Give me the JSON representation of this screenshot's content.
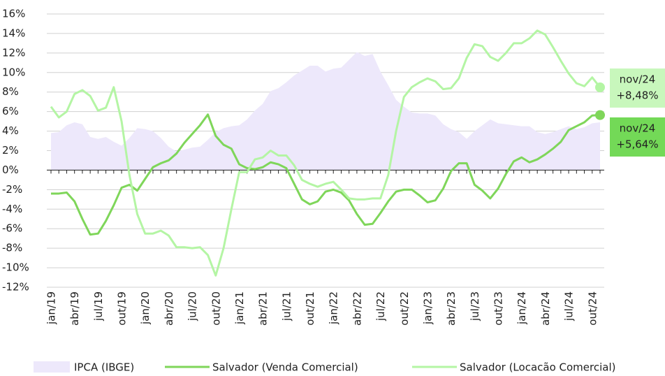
{
  "chart_data": {
    "type": "line",
    "categories": [
      "jan/19",
      null,
      null,
      "abr/19",
      null,
      null,
      "jul/19",
      null,
      null,
      "out/19",
      null,
      null,
      "jan/20",
      null,
      null,
      "abr/20",
      null,
      null,
      "jul/20",
      null,
      null,
      "out/20",
      null,
      null,
      "jan/21",
      null,
      null,
      "abr/21",
      null,
      null,
      "jul/21",
      null,
      null,
      "out/21",
      null,
      null,
      "jan/22",
      null,
      null,
      "abr/22",
      null,
      null,
      "jul/22",
      null,
      null,
      "out/22",
      null,
      null,
      "jan/23",
      null,
      null,
      "abr/23",
      null,
      null,
      "jul/23",
      null,
      null,
      "out/23",
      null,
      null,
      "jan/24",
      null,
      null,
      "abr/24",
      null,
      null,
      "jul/24",
      null,
      null,
      "out/24",
      null
    ],
    "series": [
      {
        "name": "IPCA (IBGE)",
        "color": "#ede8fb",
        "style": "area",
        "values": [
          3.8,
          3.9,
          4.6,
          4.9,
          4.7,
          3.4,
          3.2,
          3.4,
          2.9,
          2.5,
          3.3,
          4.3,
          4.2,
          4.0,
          3.3,
          2.4,
          1.9,
          2.1,
          2.3,
          2.4,
          3.1,
          3.9,
          4.3,
          4.5,
          4.6,
          5.2,
          6.1,
          6.8,
          8.1,
          8.4,
          9.0,
          9.7,
          10.2,
          10.7,
          10.7,
          10.1,
          10.4,
          10.5,
          11.3,
          12.1,
          11.7,
          11.9,
          10.1,
          8.7,
          7.2,
          6.5,
          5.9,
          5.8,
          5.8,
          5.6,
          4.7,
          4.2,
          3.9,
          3.2,
          4.0,
          4.6,
          5.2,
          4.8,
          4.7,
          4.6,
          4.5,
          4.5,
          3.9,
          3.7,
          3.9,
          4.2,
          4.5,
          4.2,
          4.4,
          4.8,
          4.9
        ]
      },
      {
        "name": "Salvador (Venda Comercial)",
        "color": "#7fd65a",
        "style": "line",
        "end_label": {
          "period": "nov/24",
          "text": "+5,64%"
        },
        "values": [
          -2.4,
          -2.4,
          -2.3,
          -3.2,
          -5.0,
          -6.6,
          -6.5,
          -5.2,
          -3.6,
          -1.8,
          -1.5,
          -2.1,
          -0.9,
          0.3,
          0.7,
          1.0,
          1.7,
          2.8,
          3.7,
          4.6,
          5.7,
          3.5,
          2.6,
          2.2,
          0.6,
          0.2,
          0.1,
          0.3,
          0.8,
          0.6,
          0.2,
          -1.4,
          -3.0,
          -3.5,
          -3.2,
          -2.2,
          -2.0,
          -2.3,
          -3.1,
          -4.5,
          -5.6,
          -5.5,
          -4.4,
          -3.2,
          -2.2,
          -2.0,
          -2.0,
          -2.6,
          -3.3,
          -3.1,
          -1.9,
          -0.1,
          0.7,
          0.7,
          -1.5,
          -2.1,
          -2.9,
          -1.9,
          -0.4,
          0.9,
          1.3,
          0.8,
          1.1,
          1.6,
          2.2,
          2.9,
          4.1,
          4.5,
          4.9,
          5.6,
          5.64
        ]
      },
      {
        "name": "Salvador (Locacão Comercial)",
        "color": "#b4f5a4",
        "style": "line",
        "end_label": {
          "period": "nov/24",
          "text": "+8,48%"
        },
        "values": [
          6.5,
          5.4,
          6.0,
          7.8,
          8.2,
          7.6,
          6.1,
          6.4,
          8.5,
          5.0,
          -0.5,
          -4.5,
          -6.5,
          -6.5,
          -6.2,
          -6.7,
          -7.9,
          -7.9,
          -8.0,
          -7.9,
          -8.7,
          -10.8,
          -8.0,
          -4.0,
          -0.2,
          -0.2,
          1.1,
          1.3,
          2.0,
          1.5,
          1.5,
          0.5,
          -1.0,
          -1.4,
          -1.7,
          -1.4,
          -1.2,
          -2.0,
          -2.9,
          -3.0,
          -3.0,
          -2.9,
          -2.9,
          -0.5,
          4.0,
          7.5,
          8.5,
          9.0,
          9.4,
          9.1,
          8.3,
          8.4,
          9.4,
          11.5,
          12.9,
          12.7,
          11.6,
          11.2,
          12.0,
          13.0,
          13.0,
          13.5,
          14.3,
          13.9,
          12.6,
          11.2,
          9.9,
          8.9,
          8.6,
          9.5,
          8.48
        ]
      }
    ],
    "ylim": [
      -12,
      16
    ],
    "yticks": [
      {
        "value": -12,
        "label": "-12%"
      },
      {
        "value": -10,
        "label": "-10%"
      },
      {
        "value": -8,
        "label": "-8%"
      },
      {
        "value": -6,
        "label": "-6%"
      },
      {
        "value": -4,
        "label": "-4%"
      },
      {
        "value": -2,
        "label": "-2%"
      },
      {
        "value": 0,
        "label": "0%"
      },
      {
        "value": 2,
        "label": "2%"
      },
      {
        "value": 4,
        "label": "4%"
      },
      {
        "value": 6,
        "label": "6%"
      },
      {
        "value": 8,
        "label": "8%"
      },
      {
        "value": 10,
        "label": "10%"
      },
      {
        "value": 12,
        "label": "12%"
      },
      {
        "value": 14,
        "label": "14%"
      },
      {
        "value": 16,
        "label": "16%"
      }
    ],
    "grid": true,
    "legend": "bottom"
  }
}
